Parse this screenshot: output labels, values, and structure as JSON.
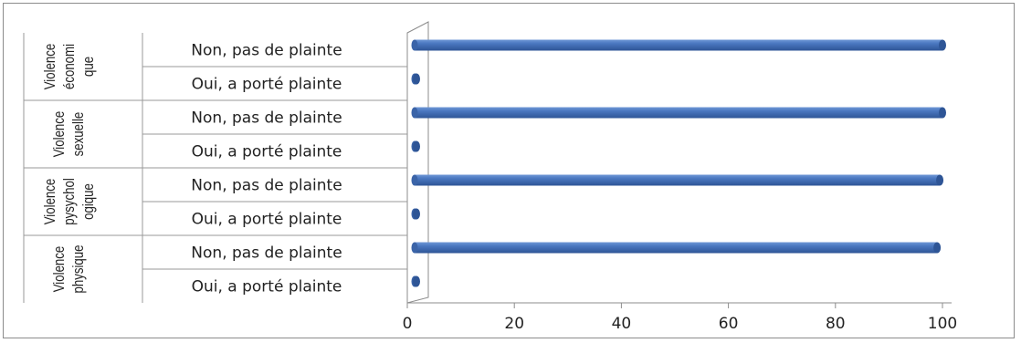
{
  "chart_data": {
    "type": "bar",
    "orientation": "horizontal",
    "style": "3d-cylinder",
    "bar_color": "#4a77c0",
    "xlim": [
      0,
      100
    ],
    "xticks": [
      "0",
      "20",
      "40",
      "60",
      "80",
      "100"
    ],
    "grid": false,
    "groups": [
      {
        "label_lines": [
          "Violence",
          "économi",
          "que"
        ],
        "categories": [
          "Non, pas de plainte",
          "Oui, a porté plainte"
        ],
        "values": [
          100,
          0.5
        ]
      },
      {
        "label_lines": [
          "Violence",
          "sexuelle"
        ],
        "categories": [
          "Non, pas de plainte",
          "Oui, a porté plainte"
        ],
        "values": [
          100,
          0.4
        ]
      },
      {
        "label_lines": [
          "Violence",
          "pysychol",
          "ogique"
        ],
        "categories": [
          "Non, pas de plainte",
          "Oui, a porté plainte"
        ],
        "values": [
          99.5,
          1.2
        ]
      },
      {
        "label_lines": [
          "Violence",
          "physique"
        ],
        "categories": [
          "Non, pas de plainte",
          "Oui, a porté plainte"
        ],
        "values": [
          99,
          1.5
        ]
      }
    ]
  }
}
